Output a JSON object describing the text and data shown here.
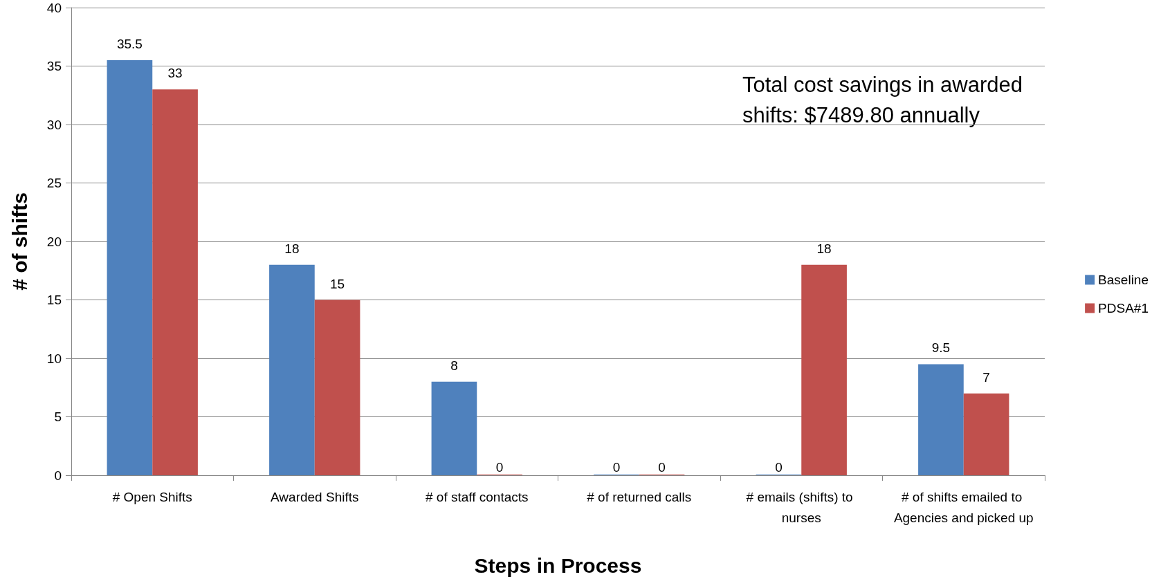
{
  "chart_data": {
    "type": "bar",
    "xlabel": "Steps in Process",
    "ylabel": "# of shifts",
    "categories": [
      "# Open Shifts",
      "Awarded Shifts",
      "# of staff contacts",
      "# of returned calls",
      "# emails (shifts) to nurses",
      "# of shifts emailed to Agencies and picked up"
    ],
    "series": [
      {
        "name": "Baseline",
        "color": "#4f81bd",
        "values": [
          35.5,
          18,
          8,
          0,
          0,
          9.5
        ]
      },
      {
        "name": "PDSA#1",
        "color": "#c0504d",
        "values": [
          33,
          15,
          0,
          0,
          18,
          7
        ]
      }
    ],
    "ylim": [
      0,
      40
    ],
    "yticks": [
      0,
      5,
      10,
      15,
      20,
      25,
      30,
      35,
      40
    ],
    "grid": "y",
    "legend": "right",
    "data_labels": true,
    "annotations": [
      "Total cost savings in awarded shifts: $7489.80 annually"
    ]
  }
}
